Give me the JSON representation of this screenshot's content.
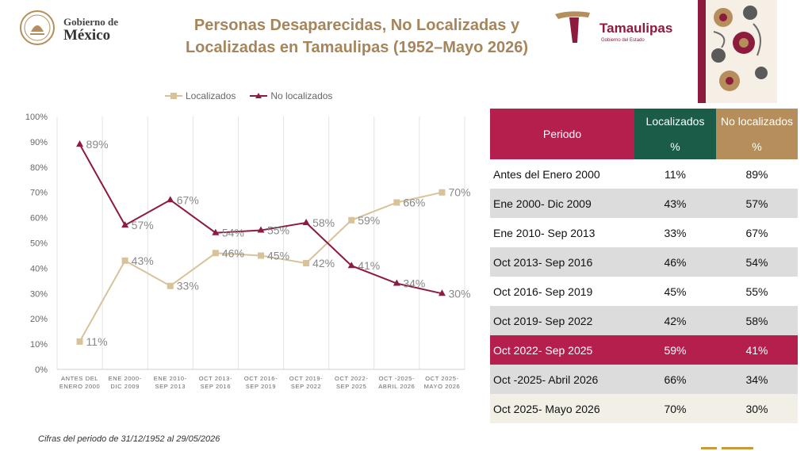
{
  "header": {
    "gob_small": "Gobierno de",
    "gob_big": "México",
    "title_line1": "Personas Desaparecidas, No Localizadas y",
    "title_line2": "Localizadas en Tamaulipas (1952–Mayo 2026)",
    "tam_name": "Tamaulipas",
    "tam_sub": "Gobierno del Estado"
  },
  "colors": {
    "localizados": "#d8c29a",
    "no_localizados": "#8d1b3d",
    "period_header": "#b51f4e",
    "loc_header": "#1a5c48",
    "noloc_header": "#b58e5b"
  },
  "chart_data": {
    "type": "line",
    "categories": [
      [
        "ANTES DEL",
        "ENERO 2000"
      ],
      [
        "ENE 2000-",
        "DIC 2009"
      ],
      [
        "ENE 2010-",
        "SEP 2013"
      ],
      [
        "OCT 2013-",
        "SEP 2016"
      ],
      [
        "OCT 2016-",
        "SEP 2019"
      ],
      [
        "OCT 2019-",
        "SEP 2022"
      ],
      [
        "OCT 2022-",
        "SEP 2025"
      ],
      [
        "OCT -2025-",
        "ABRIL 2026"
      ],
      [
        "OCT 2025-",
        "MAYO 2026"
      ]
    ],
    "series": [
      {
        "name": "Localizados",
        "values": [
          11,
          43,
          33,
          46,
          45,
          42,
          59,
          66,
          70
        ]
      },
      {
        "name": "No localizados",
        "values": [
          89,
          57,
          67,
          54,
          55,
          58,
          41,
          34,
          30
        ]
      }
    ],
    "ylim": [
      0,
      100
    ],
    "yticks": [
      "0%",
      "10%",
      "20%",
      "30%",
      "40%",
      "50%",
      "60%",
      "70%",
      "80%",
      "90%",
      "100%"
    ],
    "grid": "vertical",
    "legend": "top"
  },
  "table": {
    "headers": {
      "period": "Periodo",
      "loc": "Localizados",
      "noloc": "No localizados",
      "pct": "%"
    },
    "rows": [
      {
        "period": "Antes del Enero 2000",
        "loc": "11%",
        "noloc": "89%"
      },
      {
        "period": "Ene 2000- Dic 2009",
        "loc": "43%",
        "noloc": "57%"
      },
      {
        "period": "Ene 2010- Sep 2013",
        "loc": "33%",
        "noloc": "67%"
      },
      {
        "period": "Oct 2013- Sep 2016",
        "loc": "46%",
        "noloc": "54%"
      },
      {
        "period": "Oct 2016- Sep 2019",
        "loc": "45%",
        "noloc": "55%"
      },
      {
        "period": "Oct 2019- Sep 2022",
        "loc": "42%",
        "noloc": "58%"
      },
      {
        "period": "Oct 2022- Sep 2025",
        "loc": "59%",
        "noloc": "41%"
      },
      {
        "period": "Oct -2025- Abril 2026",
        "loc": "66%",
        "noloc": "34%"
      },
      {
        "period": "Oct 2025- Mayo 2026",
        "loc": "70%",
        "noloc": "30%"
      }
    ]
  },
  "footnote": "Cifras del periodo de 31/12/1952 al  29/05/2026"
}
